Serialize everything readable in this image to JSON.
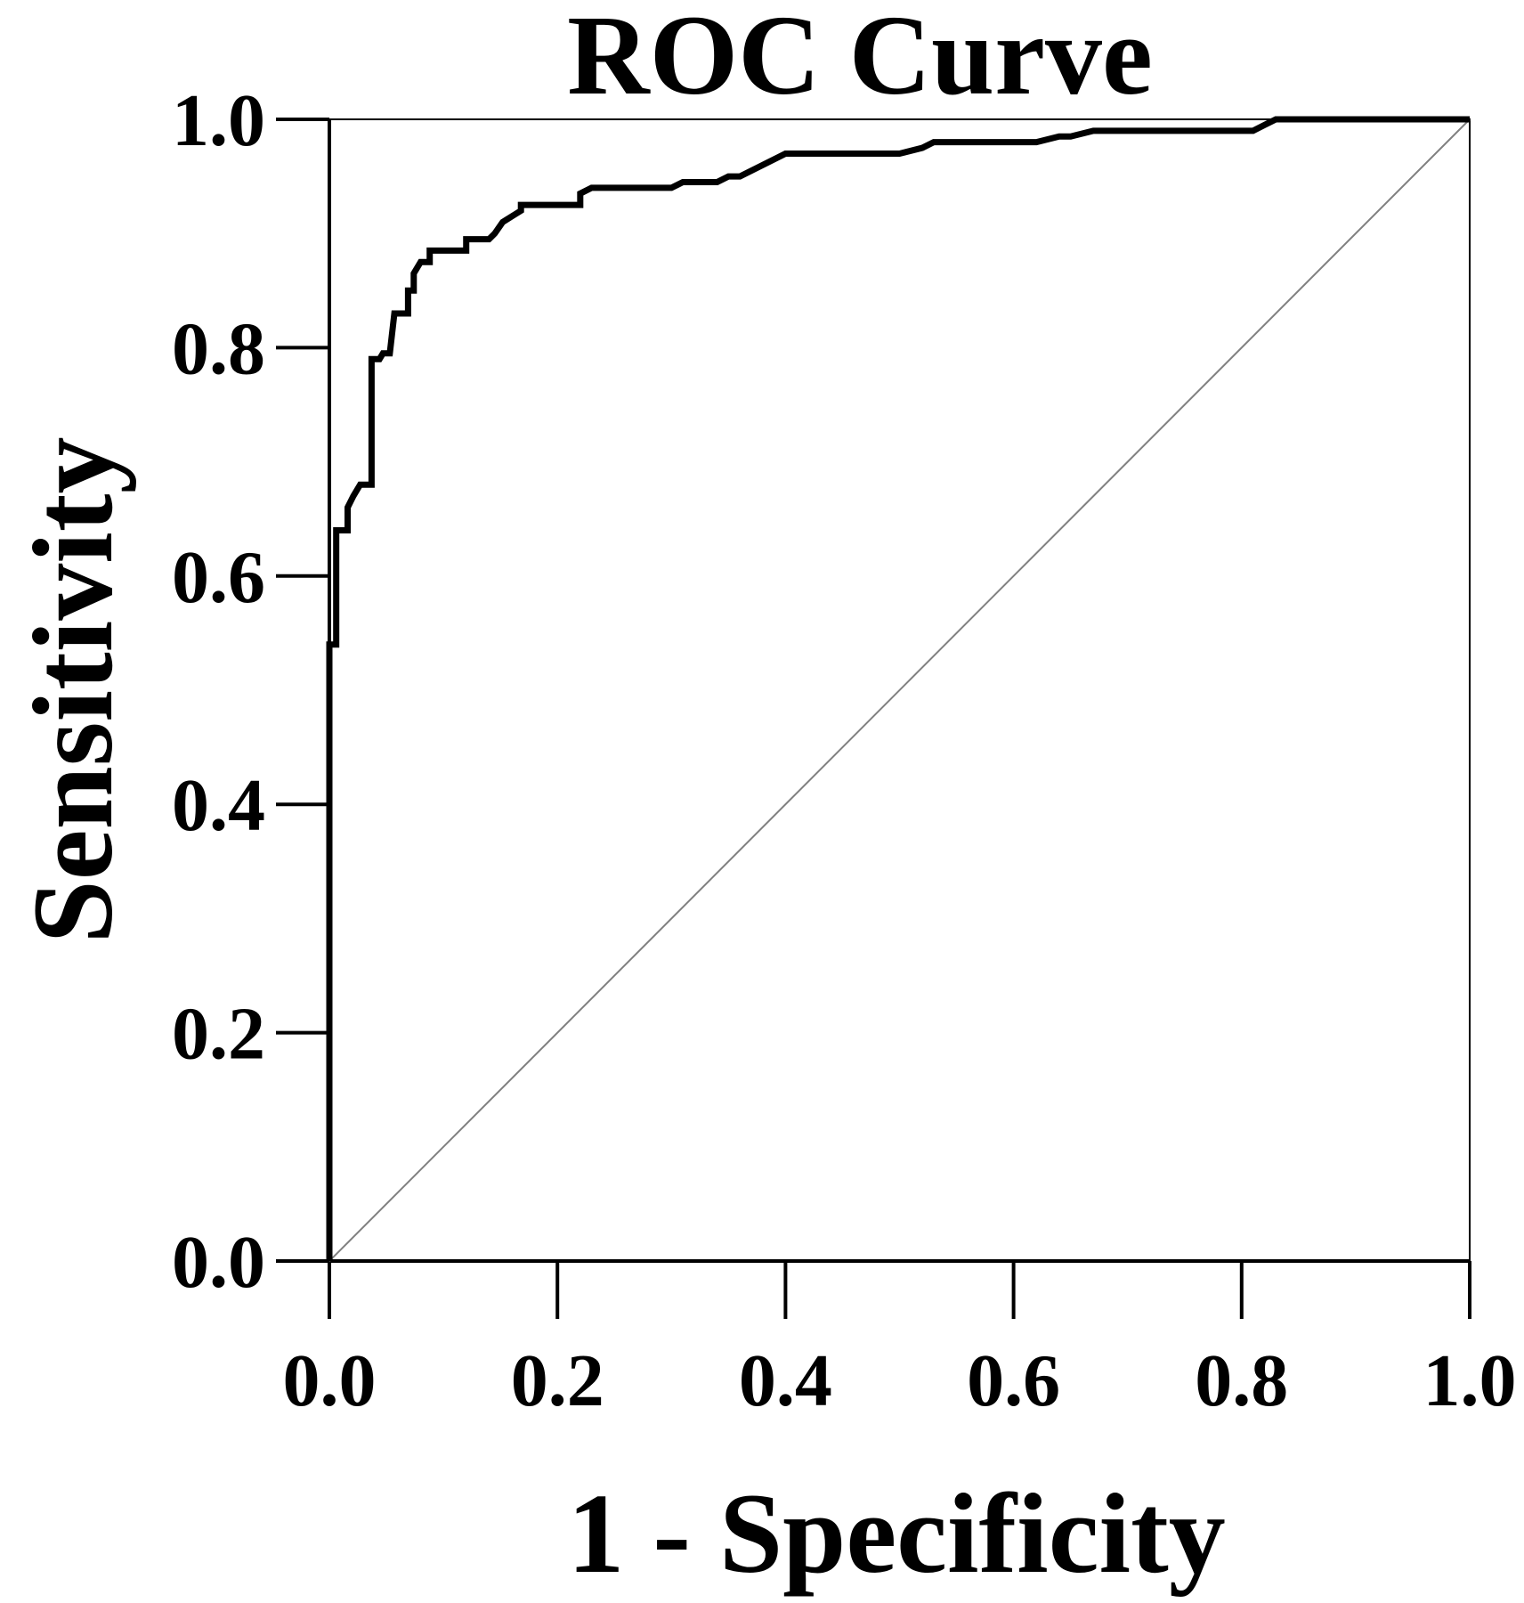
{
  "chart_data": {
    "type": "line",
    "title": "ROC Curve",
    "xlabel": "1 - Specificity",
    "ylabel": "Sensitivity",
    "xlim": [
      0,
      1
    ],
    "ylim": [
      0,
      1
    ],
    "x_ticks": [
      "0.0",
      "0.2",
      "0.4",
      "0.6",
      "0.8",
      "1.0"
    ],
    "y_ticks": [
      "0.0",
      "0.2",
      "0.4",
      "0.6",
      "0.8",
      "1.0"
    ],
    "grid": false,
    "legend": "none",
    "colors": {
      "curve": "#000000",
      "reference": "#808080",
      "axes": "#000000"
    },
    "series": [
      {
        "x": [
          0,
          0,
          0.002,
          0.006,
          0.006,
          0.01,
          0.01,
          0.016,
          0.016,
          0.021,
          0.027,
          0.032,
          0.032,
          0.037,
          0.037,
          0.044,
          0.047,
          0.053,
          0.053,
          0.057,
          0.064,
          0.069,
          0.069,
          0.074,
          0.074,
          0.08,
          0.088,
          0.088,
          0.096,
          0.12,
          0.12,
          0.14,
          0.145,
          0.152,
          0.16,
          0.168,
          0.168,
          0.177,
          0.22,
          0.22,
          0.23,
          0.3,
          0.31,
          0.34,
          0.35,
          0.36,
          0.4,
          0.5,
          0.52,
          0.53,
          0.62,
          0.64,
          0.65,
          0.67,
          0.68,
          0.81,
          0.82,
          0.83,
          0.84,
          0.9,
          1.0
        ],
        "y": [
          0,
          0.54,
          0.54,
          0.54,
          0.64,
          0.64,
          0.64,
          0.64,
          0.66,
          0.67,
          0.68,
          0.68,
          0.68,
          0.68,
          0.79,
          0.79,
          0.795,
          0.795,
          0.795,
          0.83,
          0.83,
          0.83,
          0.85,
          0.85,
          0.865,
          0.875,
          0.875,
          0.885,
          0.885,
          0.885,
          0.895,
          0.895,
          0.9,
          0.91,
          0.915,
          0.92,
          0.925,
          0.925,
          0.925,
          0.935,
          0.94,
          0.94,
          0.945,
          0.945,
          0.95,
          0.95,
          0.97,
          0.97,
          0.975,
          0.98,
          0.98,
          0.985,
          0.985,
          0.99,
          0.99,
          0.99,
          0.995,
          1.0,
          1.0,
          1.0,
          1.0
        ]
      },
      {
        "x": [
          0,
          1
        ],
        "y": [
          0,
          1
        ]
      }
    ]
  }
}
